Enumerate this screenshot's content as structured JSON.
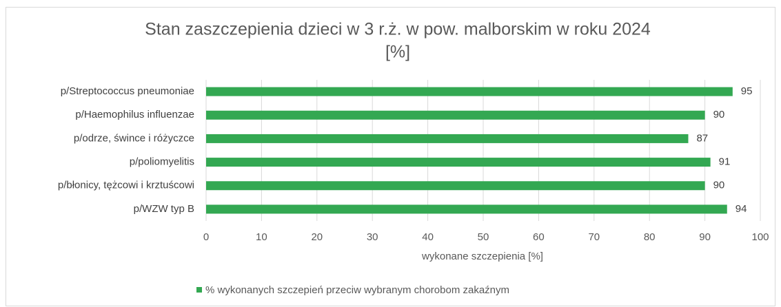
{
  "chart_data": {
    "type": "barh",
    "title": [
      "Stan zaszczepienia dzieci w 3 r.ż. w pow. malborskim w roku 2024",
      "[%]"
    ],
    "categories": [
      "p/Streptococcus pneumoniae",
      "p/Haemophilus influenzae",
      "p/odrze, śwince i różyczce",
      "p/poliomyelitis",
      "p/błonicy, tężcowi i krztuścowi",
      "p/WZW typ B"
    ],
    "series": [
      {
        "name": "% wykonanych szczepień przeciw wybranym chorobom zakaźnym",
        "color": "#33a852",
        "values": [
          95,
          90,
          87,
          91,
          90,
          94
        ]
      }
    ],
    "xlabel": "wykonane szczepienia [%]",
    "xlim": [
      0,
      100
    ],
    "xticks": [
      0,
      10,
      20,
      30,
      40,
      50,
      60,
      70,
      80,
      90,
      100
    ],
    "grid": true,
    "legend": "bottom"
  }
}
